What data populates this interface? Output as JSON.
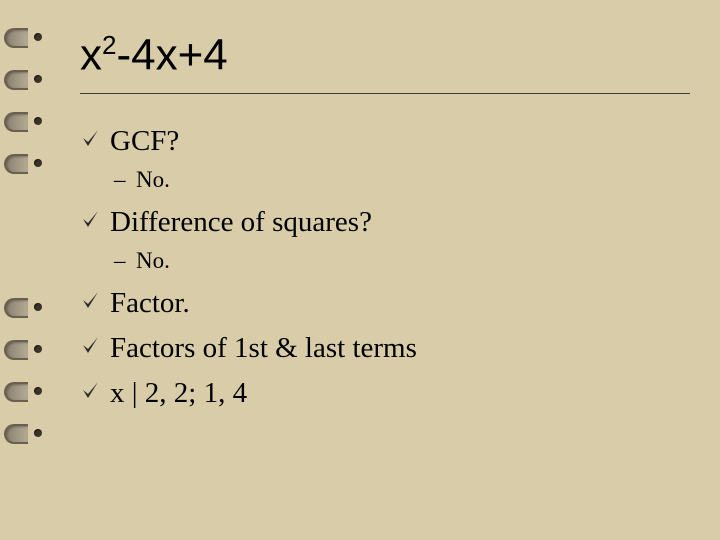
{
  "title_parts": {
    "base1": "x",
    "exp": "2",
    "rest": "-4x+4"
  },
  "items": [
    {
      "type": "bullet",
      "text": "GCF?"
    },
    {
      "type": "sub",
      "text": "No."
    },
    {
      "type": "bullet",
      "text": "Difference of squares?"
    },
    {
      "type": "sub",
      "text": "No."
    },
    {
      "type": "bullet",
      "text": "Factor."
    },
    {
      "type": "bullet",
      "text": "Factors of 1st & last terms"
    },
    {
      "type": "bullet",
      "text": "x | 2, 2; 1, 4"
    }
  ],
  "style": {
    "background_color": "#d8cda8",
    "title_fontsize": 44,
    "bullet_fontsize": 29,
    "sub_fontsize": 23,
    "check_fill": "#2a2a2a",
    "divider_color": "#3a3a3a"
  },
  "ring_positions": [
    28,
    70,
    112,
    154,
    298,
    340,
    382,
    424
  ]
}
